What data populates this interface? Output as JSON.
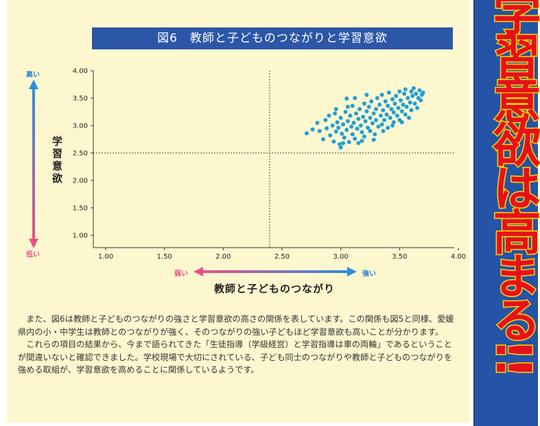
{
  "chart_data": {
    "type": "scatter",
    "title": "図6　教師と子どものつながりと学習意欲",
    "xlabel": "教師と子どものつながり",
    "ylabel": "学習意欲",
    "xlim": [
      1.0,
      4.0
    ],
    "ylim": [
      1.0,
      4.0
    ],
    "x_ticks": [
      "1.00",
      "1.50",
      "2.00",
      "2.50",
      "3.00",
      "3.50",
      "4.00"
    ],
    "y_ticks": [
      "4.00",
      "3.50",
      "3.00",
      "2.50",
      "2.00",
      "1.50",
      "1.00"
    ],
    "reference_lines": {
      "x": 2.5,
      "y": 2.5
    },
    "y_high_label": "高い",
    "y_low_label": "低い",
    "x_low_label": "弱い",
    "x_high_label": "強い",
    "point_color": "#1f9fd9",
    "points": [
      [
        2.71,
        2.86
      ],
      [
        2.76,
        2.93
      ],
      [
        2.8,
        3.05
      ],
      [
        2.82,
        2.9
      ],
      [
        2.85,
        2.75
      ],
      [
        2.87,
        3.1
      ],
      [
        2.88,
        2.95
      ],
      [
        2.9,
        3.18
      ],
      [
        2.91,
        2.82
      ],
      [
        2.93,
        3.0
      ],
      [
        2.94,
        2.71
      ],
      [
        2.95,
        3.22
      ],
      [
        2.96,
        2.89
      ],
      [
        2.97,
        3.06
      ],
      [
        2.98,
        2.96
      ],
      [
        2.99,
        2.66
      ],
      [
        3.0,
        2.6
      ],
      [
        3.0,
        3.14
      ],
      [
        3.01,
        2.85
      ],
      [
        3.02,
        3.02
      ],
      [
        3.03,
        2.78
      ],
      [
        3.04,
        3.25
      ],
      [
        3.05,
        2.92
      ],
      [
        3.05,
        3.49
      ],
      [
        3.06,
        3.08
      ],
      [
        3.07,
        2.7
      ],
      [
        3.08,
        3.18
      ],
      [
        3.09,
        2.98
      ],
      [
        3.1,
        2.84
      ],
      [
        3.1,
        3.36
      ],
      [
        3.11,
        3.05
      ],
      [
        3.12,
        2.76
      ],
      [
        3.13,
        3.22
      ],
      [
        3.14,
        2.94
      ],
      [
        3.15,
        3.12
      ],
      [
        3.15,
        2.68
      ],
      [
        3.16,
        3.3
      ],
      [
        3.17,
        3.0
      ],
      [
        3.18,
        2.88
      ],
      [
        3.19,
        3.16
      ],
      [
        3.2,
        3.4
      ],
      [
        3.2,
        2.8
      ],
      [
        3.21,
        3.08
      ],
      [
        3.22,
        3.26
      ],
      [
        3.23,
        2.96
      ],
      [
        3.24,
        3.34
      ],
      [
        3.25,
        3.14
      ],
      [
        3.25,
        2.9
      ],
      [
        3.26,
        3.44
      ],
      [
        3.27,
        3.04
      ],
      [
        3.28,
        3.22
      ],
      [
        3.29,
        2.84
      ],
      [
        3.3,
        3.3
      ],
      [
        3.3,
        3.1
      ],
      [
        3.31,
        3.5
      ],
      [
        3.32,
        2.98
      ],
      [
        3.33,
        3.38
      ],
      [
        3.34,
        3.18
      ],
      [
        3.35,
        3.02
      ],
      [
        3.35,
        3.56
      ],
      [
        3.36,
        3.28
      ],
      [
        3.37,
        3.1
      ],
      [
        3.38,
        3.44
      ],
      [
        3.39,
        3.2
      ],
      [
        3.4,
        2.96
      ],
      [
        3.4,
        3.36
      ],
      [
        3.41,
        3.6
      ],
      [
        3.42,
        3.14
      ],
      [
        3.43,
        3.3
      ],
      [
        3.44,
        3.48
      ],
      [
        3.45,
        3.06
      ],
      [
        3.45,
        3.24
      ],
      [
        3.46,
        3.4
      ],
      [
        3.47,
        3.54
      ],
      [
        3.48,
        3.18
      ],
      [
        3.49,
        3.32
      ],
      [
        3.5,
        3.62
      ],
      [
        3.5,
        3.1
      ],
      [
        3.51,
        3.46
      ],
      [
        3.52,
        3.26
      ],
      [
        3.53,
        3.38
      ],
      [
        3.54,
        3.58
      ],
      [
        3.55,
        3.2
      ],
      [
        3.55,
        3.66
      ],
      [
        3.56,
        3.34
      ],
      [
        3.57,
        3.5
      ],
      [
        3.58,
        3.14
      ],
      [
        3.59,
        3.42
      ],
      [
        3.6,
        3.62
      ],
      [
        3.6,
        3.28
      ],
      [
        3.61,
        3.54
      ],
      [
        3.62,
        3.68
      ],
      [
        3.63,
        3.4
      ],
      [
        3.64,
        3.58
      ],
      [
        3.65,
        3.32
      ],
      [
        3.66,
        3.5
      ],
      [
        3.67,
        3.64
      ],
      [
        3.68,
        3.46
      ],
      [
        3.69,
        3.56
      ],
      [
        3.7,
        3.6
      ],
      [
        3.12,
        3.5
      ],
      [
        3.22,
        3.56
      ],
      [
        3.06,
        3.34
      ],
      [
        2.96,
        3.3
      ],
      [
        3.02,
        2.68
      ],
      [
        3.28,
        2.74
      ],
      [
        3.36,
        2.9
      ],
      [
        3.18,
        2.72
      ],
      [
        3.44,
        3.0
      ],
      [
        3.52,
        3.06
      ]
    ]
  },
  "body": {
    "para1": "また、図6は教師と子どものつながりの強さと学習意欲の高さの関係を表しています。この関係も図5と同様、愛媛県内の小・中学生は教師とのつながりが強く、そのつながりの強い子どもほど学習意欲も高いことが分かります。",
    "para2": "これらの項目の結果から、今まで語られてきた「生徒指導（学級経営）と学習指導は車の両輪」であるということが間違いないと確認できました。学校現場で大切にされている、子ども同士のつながりや教師と子どものつながりを強める取組が、学習意欲を高めることに関係しているようです。"
  },
  "banner": {
    "text": "学習意欲は高まる!!",
    "colors": {
      "fill": "#e4121b",
      "stroke": "#ffd400",
      "background": "#2553a6"
    }
  }
}
